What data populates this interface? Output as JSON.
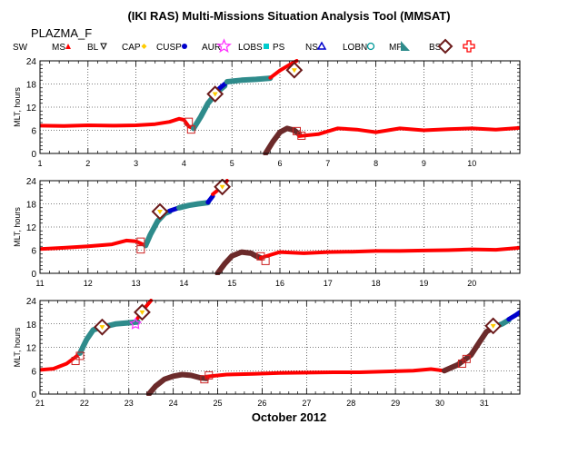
{
  "page": {
    "title": "(IKI RAS) Multi-Missions Situation Analysis Tool (MMSAT)",
    "mission": "PLAZMA_F",
    "date_label": "October 2012"
  },
  "legend": [
    {
      "label": "SW",
      "symbol": "none",
      "color": "#000000"
    },
    {
      "label": "MS",
      "symbol": "triangle-up",
      "color": "#ff0000"
    },
    {
      "label": "BL",
      "symbol": "triangle-down",
      "color": "#000000"
    },
    {
      "label": "CAP",
      "symbol": "diamond",
      "color": "#ffcc00"
    },
    {
      "label": "CUSP",
      "symbol": "circle",
      "color": "#0000cc"
    },
    {
      "label": "AUR",
      "symbol": "star",
      "color": "#ff33ff"
    },
    {
      "label": "LOBS",
      "symbol": "square-filled",
      "color": "#00cccc"
    },
    {
      "label": "PS",
      "symbol": "none",
      "color": "#000000"
    },
    {
      "label": "NS",
      "symbol": "triangle-up-open",
      "color": "#0000cc"
    },
    {
      "label": "LOBN",
      "symbol": "circle-open",
      "color": "#009999"
    },
    {
      "label": "MP",
      "symbol": "flag",
      "color": "#2e8b8b"
    },
    {
      "label": "BS",
      "symbol": "diamond-open",
      "color": "#6b1a1a"
    },
    {
      "label": "",
      "symbol": "cross-open",
      "color": "#ff0000"
    }
  ],
  "colors": {
    "magnetosheath": "#ff0000",
    "solar_wind": "#6b2a2a",
    "boundary_layer": "#2e8b8b",
    "cusp": "#0000cc",
    "bow_shock": "#6b1a1a",
    "square_marker": "#cc2222",
    "axis": "#000000",
    "grid": "#000000"
  },
  "chart_data": [
    {
      "type": "line",
      "ylabel": "MLT, hours",
      "xlim": [
        1,
        11
      ],
      "ylim": [
        0,
        24
      ],
      "xticks": [
        "1",
        "2",
        "3",
        "4",
        "5",
        "6",
        "7",
        "8",
        "9",
        "10"
      ],
      "yticks": [
        "0",
        "6",
        "12",
        "18",
        "24"
      ],
      "grid": true,
      "series": [
        {
          "role": "magnetosheath",
          "x": [
            1,
            1.5,
            2,
            2.5,
            3,
            3.4,
            3.7,
            3.9,
            4.0,
            4.1,
            4.2
          ],
          "y": [
            7.2,
            7.1,
            7.3,
            7.2,
            7.3,
            7.6,
            8.2,
            9.0,
            8.7,
            7.0,
            6.5
          ]
        },
        {
          "role": "boundary_layer",
          "x": [
            4.2,
            4.35,
            4.5,
            4.6,
            4.7,
            4.85
          ],
          "y": [
            6.5,
            9.5,
            13.0,
            14.5,
            16.0,
            17.5
          ]
        },
        {
          "role": "cusp",
          "x": [
            4.6,
            4.75,
            4.9
          ],
          "y": [
            15.0,
            17.0,
            18.5
          ]
        },
        {
          "role": "boundary_layer",
          "x": [
            4.9,
            5.2,
            5.5,
            5.8
          ],
          "y": [
            18.6,
            19.0,
            19.2,
            19.5
          ]
        },
        {
          "role": "magnetosheath",
          "x": [
            5.8,
            6.0,
            6.2,
            6.35
          ],
          "y": [
            19.6,
            21.5,
            23.0,
            24.0
          ]
        },
        {
          "role": "solar_wind",
          "x": [
            5.7,
            5.85,
            6.0,
            6.15,
            6.3,
            6.4
          ],
          "y": [
            0.0,
            3.0,
            5.5,
            6.5,
            6.0,
            5.0
          ]
        },
        {
          "role": "magnetosheath",
          "x": [
            6.4,
            6.8,
            7.2,
            7.6,
            8.0,
            8.5,
            9.0,
            9.5,
            10.0,
            10.5,
            11.0
          ],
          "y": [
            4.5,
            5.0,
            6.5,
            6.2,
            5.5,
            6.5,
            6.0,
            6.3,
            6.5,
            6.2,
            6.6
          ]
        }
      ],
      "markers": [
        {
          "symbol": "square",
          "x": 4.1,
          "y": 8.2
        },
        {
          "symbol": "square",
          "x": 4.15,
          "y": 6.2
        },
        {
          "symbol": "diamond",
          "x": 4.65,
          "y": 15.4
        },
        {
          "symbol": "diamond",
          "x": 6.3,
          "y": 21.6
        },
        {
          "symbol": "square",
          "x": 6.35,
          "y": 5.8
        },
        {
          "symbol": "square",
          "x": 6.45,
          "y": 4.6
        }
      ]
    },
    {
      "type": "line",
      "ylabel": "MLT, hours",
      "xlim": [
        11,
        21
      ],
      "ylim": [
        0,
        24
      ],
      "xticks": [
        "11",
        "12",
        "13",
        "14",
        "15",
        "16",
        "17",
        "18",
        "19",
        "20"
      ],
      "yticks": [
        "0",
        "6",
        "12",
        "18",
        "24"
      ],
      "grid": true,
      "series": [
        {
          "role": "magnetosheath",
          "x": [
            11,
            11.5,
            12,
            12.5,
            12.8,
            13.0,
            13.2
          ],
          "y": [
            6.3,
            6.6,
            7.0,
            7.5,
            8.5,
            8.3,
            7.2
          ]
        },
        {
          "role": "boundary_layer",
          "x": [
            13.2,
            13.3,
            13.45,
            13.6,
            13.7
          ],
          "y": [
            7.2,
            10.0,
            13.5,
            15.5,
            16.0
          ]
        },
        {
          "role": "cusp",
          "x": [
            13.7,
            13.9
          ],
          "y": [
            16.2,
            17.0
          ]
        },
        {
          "role": "boundary_layer",
          "x": [
            13.9,
            14.1,
            14.3,
            14.5
          ],
          "y": [
            17.0,
            17.6,
            18.0,
            18.3
          ]
        },
        {
          "role": "cusp",
          "x": [
            14.5,
            14.6
          ],
          "y": [
            18.4,
            20.0
          ]
        },
        {
          "role": "magnetosheath",
          "x": [
            14.6,
            14.8,
            14.9
          ],
          "y": [
            20.5,
            22.5,
            24.0
          ]
        },
        {
          "role": "solar_wind",
          "x": [
            14.7,
            14.85,
            15.0,
            15.2,
            15.4,
            15.5,
            15.6
          ],
          "y": [
            0.0,
            2.5,
            4.5,
            5.5,
            5.2,
            4.5,
            4.0
          ]
        },
        {
          "role": "magnetosheath",
          "x": [
            15.6,
            16.0,
            16.5,
            17.0,
            17.5,
            18.0,
            18.5,
            19.0,
            19.5,
            20.0,
            20.5,
            21.0
          ],
          "y": [
            4.0,
            5.5,
            5.2,
            5.5,
            5.6,
            5.8,
            5.8,
            5.9,
            6.0,
            6.2,
            6.1,
            6.6
          ]
        }
      ],
      "markers": [
        {
          "symbol": "square",
          "x": 13.1,
          "y": 8.2
        },
        {
          "symbol": "square",
          "x": 13.1,
          "y": 6.2
        },
        {
          "symbol": "diamond",
          "x": 13.5,
          "y": 16.0
        },
        {
          "symbol": "diamond",
          "x": 14.8,
          "y": 22.4
        },
        {
          "symbol": "square",
          "x": 15.6,
          "y": 4.4
        },
        {
          "symbol": "square",
          "x": 15.7,
          "y": 3.2
        }
      ]
    },
    {
      "type": "line",
      "ylabel": "MLT, hours",
      "xlim": [
        21,
        31.8
      ],
      "ylim": [
        0,
        24
      ],
      "xticks": [
        "21",
        "22",
        "23",
        "24",
        "25",
        "26",
        "27",
        "28",
        "29",
        "30",
        "31"
      ],
      "yticks": [
        "0",
        "6",
        "12",
        "18",
        "24"
      ],
      "grid": true,
      "series": [
        {
          "role": "magnetosheath",
          "x": [
            21,
            21.3,
            21.6,
            21.8,
            21.9
          ],
          "y": [
            6.2,
            6.5,
            7.8,
            9.5,
            10.5
          ]
        },
        {
          "role": "boundary_layer",
          "x": [
            21.9,
            22.05,
            22.2,
            22.35
          ],
          "y": [
            10.5,
            14.0,
            16.5,
            17.0
          ]
        },
        {
          "role": "boundary_layer",
          "x": [
            22.35,
            22.7,
            23.0,
            23.2
          ],
          "y": [
            17.0,
            18.0,
            18.3,
            18.5
          ]
        },
        {
          "role": "magnetosheath",
          "x": [
            23.2,
            23.35,
            23.5
          ],
          "y": [
            19.5,
            22.0,
            24.0
          ]
        },
        {
          "role": "solar_wind",
          "x": [
            23.45,
            23.6,
            23.8,
            24.0,
            24.2,
            24.4,
            24.6,
            24.75
          ],
          "y": [
            0.0,
            2.0,
            3.8,
            4.6,
            5.0,
            4.8,
            4.2,
            4.0
          ]
        },
        {
          "role": "magnetosheath",
          "x": [
            24.75,
            25.2,
            25.8,
            26.4,
            27.0,
            27.6,
            28.2,
            28.8,
            29.4,
            29.8,
            30.1
          ],
          "y": [
            4.5,
            5.0,
            5.2,
            5.4,
            5.5,
            5.6,
            5.6,
            5.8,
            6.0,
            6.4,
            6.0
          ]
        },
        {
          "role": "solar_wind",
          "x": [
            30.1,
            30.4,
            30.7,
            30.9,
            31.05,
            31.2
          ],
          "y": [
            6.0,
            7.5,
            10.0,
            13.5,
            16.0,
            17.0
          ]
        },
        {
          "role": "boundary_layer",
          "x": [
            31.2,
            31.4,
            31.55
          ],
          "y": [
            17.2,
            18.0,
            19.0
          ]
        },
        {
          "role": "cusp",
          "x": [
            31.55,
            31.7,
            31.8
          ],
          "y": [
            19.2,
            20.2,
            21.0
          ]
        }
      ],
      "markers": [
        {
          "symbol": "square",
          "x": 21.8,
          "y": 8.5
        },
        {
          "symbol": "square",
          "x": 21.9,
          "y": 9.8
        },
        {
          "symbol": "diamond",
          "x": 22.4,
          "y": 17.2
        },
        {
          "symbol": "diamond",
          "x": 23.3,
          "y": 21.0
        },
        {
          "symbol": "square",
          "x": 24.7,
          "y": 3.8
        },
        {
          "symbol": "square",
          "x": 24.8,
          "y": 4.8
        },
        {
          "symbol": "square",
          "x": 30.5,
          "y": 7.8
        },
        {
          "symbol": "square",
          "x": 30.6,
          "y": 9.0
        },
        {
          "symbol": "diamond",
          "x": 31.2,
          "y": 17.5
        },
        {
          "symbol": "star",
          "x": 23.15,
          "y": 18.0
        }
      ]
    }
  ]
}
